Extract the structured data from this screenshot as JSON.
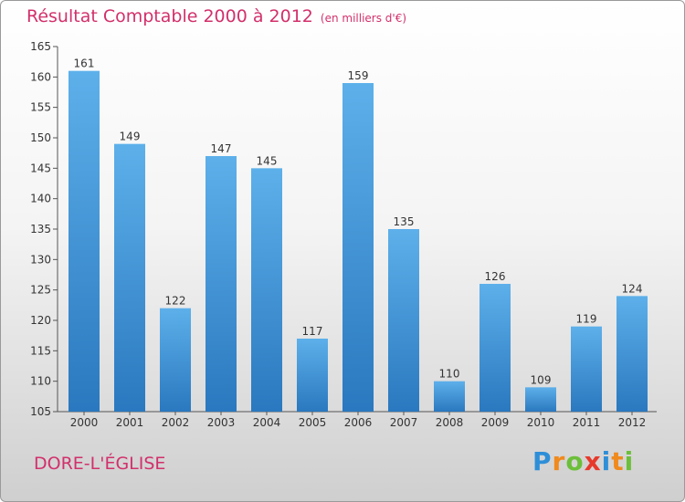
{
  "chart_data": {
    "type": "bar",
    "title": "Résultat Comptable 2000 à 2012",
    "subtitle": "(en milliers d'€)",
    "categories": [
      "2000",
      "2001",
      "2002",
      "2003",
      "2004",
      "2005",
      "2006",
      "2007",
      "2008",
      "2009",
      "2010",
      "2011",
      "2012"
    ],
    "values": [
      161,
      149,
      122,
      147,
      145,
      117,
      159,
      135,
      110,
      126,
      109,
      119,
      124
    ],
    "ylim": [
      105,
      165
    ],
    "yticks": [
      105,
      110,
      115,
      120,
      125,
      130,
      135,
      140,
      145,
      150,
      155,
      160,
      165
    ],
    "grid": false,
    "colors": {
      "bar": "#4a9ee0",
      "title": "#d2306b"
    }
  },
  "footer": {
    "commune": "DORE-L'ÉGLISE",
    "brand": "Proxiti"
  },
  "brand_letters": [
    {
      "ch": "P",
      "color": "#2e8fd8"
    },
    {
      "ch": "r",
      "color": "#f08a1c"
    },
    {
      "ch": "o",
      "color": "#6cbf3a"
    },
    {
      "ch": "x",
      "color": "#e7392b"
    },
    {
      "ch": "i",
      "color": "#2e8fd8"
    },
    {
      "ch": "t",
      "color": "#f08a1c"
    },
    {
      "ch": "i",
      "color": "#6cbf3a"
    }
  ]
}
